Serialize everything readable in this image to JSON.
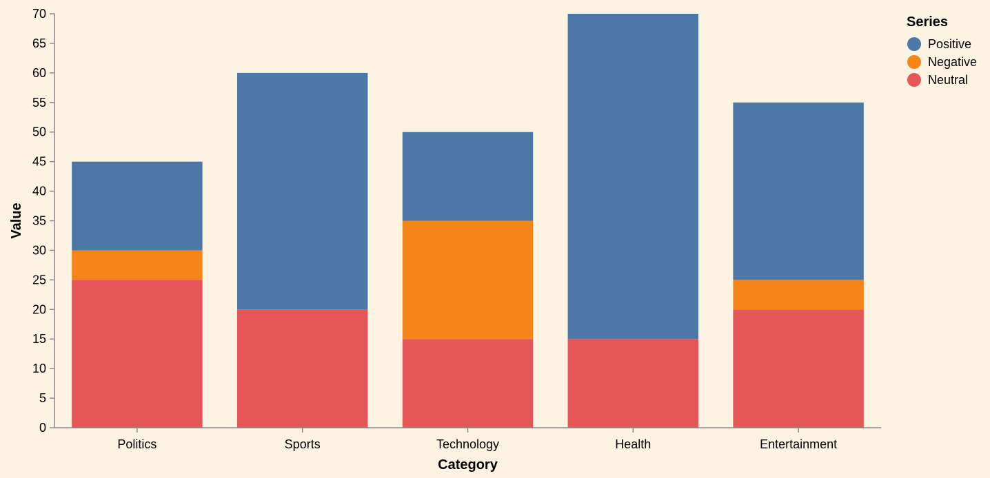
{
  "chart_data": {
    "type": "bar",
    "stacked": true,
    "categories": [
      "Politics",
      "Sports",
      "Technology",
      "Health",
      "Entertainment"
    ],
    "series": [
      {
        "name": "Neutral",
        "color": "#e45756",
        "values": [
          25,
          20,
          15,
          15,
          20
        ]
      },
      {
        "name": "Negative",
        "color": "#f58518",
        "values": [
          5,
          0,
          20,
          0,
          5
        ]
      },
      {
        "name": "Positive",
        "color": "#4c78a8",
        "values": [
          15,
          40,
          15,
          55,
          30
        ]
      }
    ],
    "legend_order": [
      "Positive",
      "Negative",
      "Neutral"
    ],
    "xlabel": "Category",
    "ylabel": "Value",
    "ylim": [
      0,
      70
    ],
    "yticks": [
      0,
      5,
      10,
      15,
      20,
      25,
      30,
      35,
      40,
      45,
      50,
      55,
      60,
      65,
      70
    ],
    "legend_title": "Series",
    "legend_position": "top-right",
    "grid": false,
    "background": "#fdf3e3",
    "axis_color": "#888888"
  }
}
